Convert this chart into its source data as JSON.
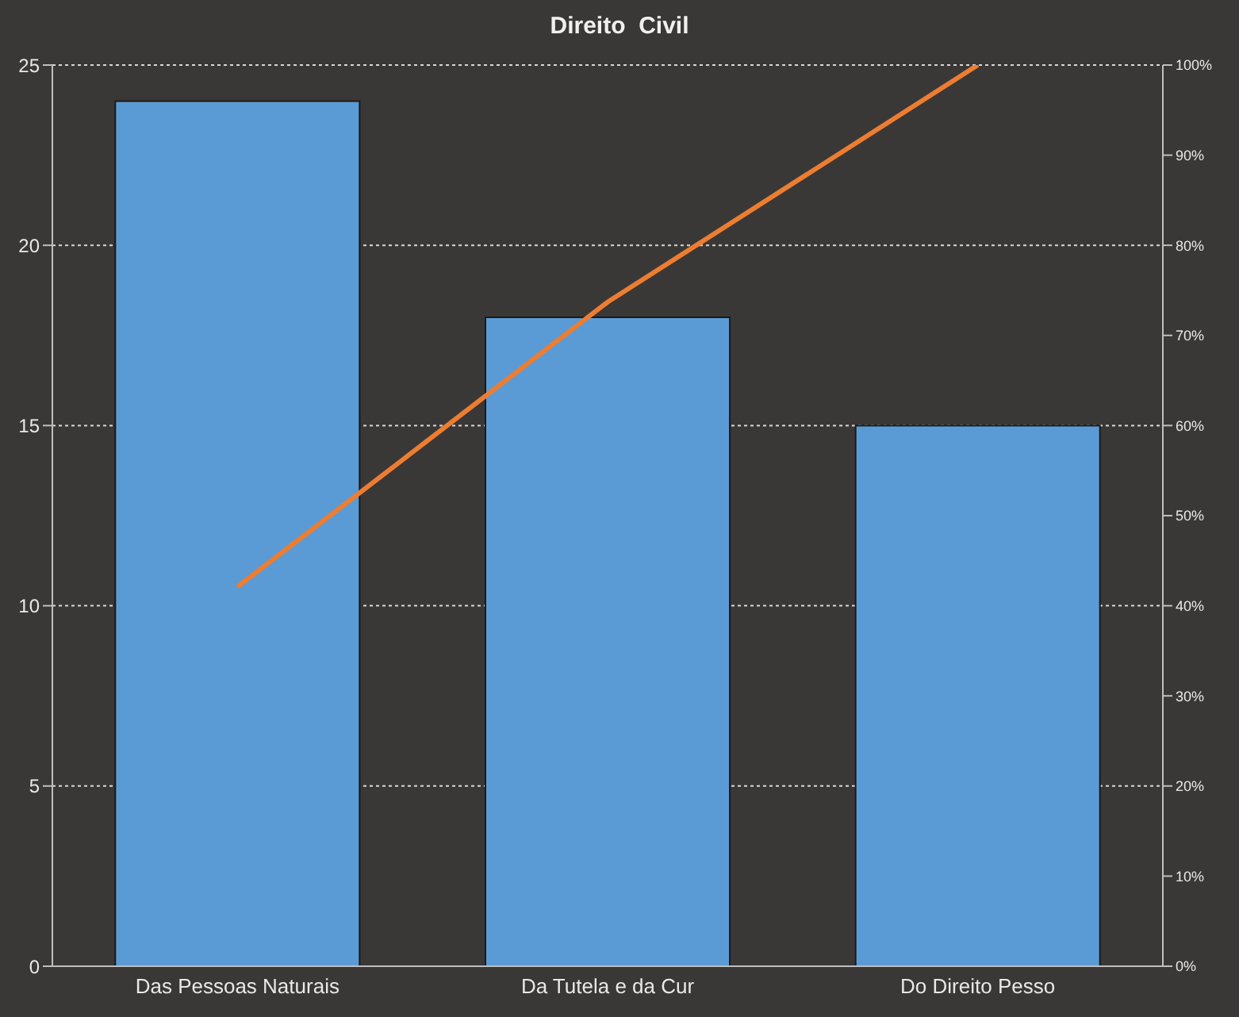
{
  "chart_data": {
    "type": "bar",
    "title": "Direito  Civil",
    "categories": [
      "Das Pessoas Naturais",
      "Da Tutela e da Cur",
      "Do Direito Pesso"
    ],
    "series": [
      {
        "color": "#5b9bd5",
        "values": [
          24,
          18,
          15
        ]
      },
      {
        "type": "line",
        "axis": "y2",
        "color": "#ed7d31",
        "values": [
          42.1,
          73.7,
          100
        ]
      }
    ],
    "ylim": [
      0,
      25
    ],
    "yticks": [
      0,
      5,
      10,
      15,
      20,
      25
    ],
    "y2lim": [
      0,
      100
    ],
    "y2ticks": [
      {
        "value": 0,
        "label": "0%"
      },
      {
        "value": 10,
        "label": "10%"
      },
      {
        "value": 20,
        "label": "20%"
      },
      {
        "value": 30,
        "label": "30%"
      },
      {
        "value": 40,
        "label": "40%"
      },
      {
        "value": 50,
        "label": "50%"
      },
      {
        "value": 60,
        "label": "60%"
      },
      {
        "value": 70,
        "label": "70%"
      },
      {
        "value": 80,
        "label": "80%"
      },
      {
        "value": 90,
        "label": "90%"
      },
      {
        "value": 100,
        "label": "100%"
      }
    ],
    "grid": "y",
    "legend": false,
    "marker": "none",
    "line_style": "solid"
  }
}
